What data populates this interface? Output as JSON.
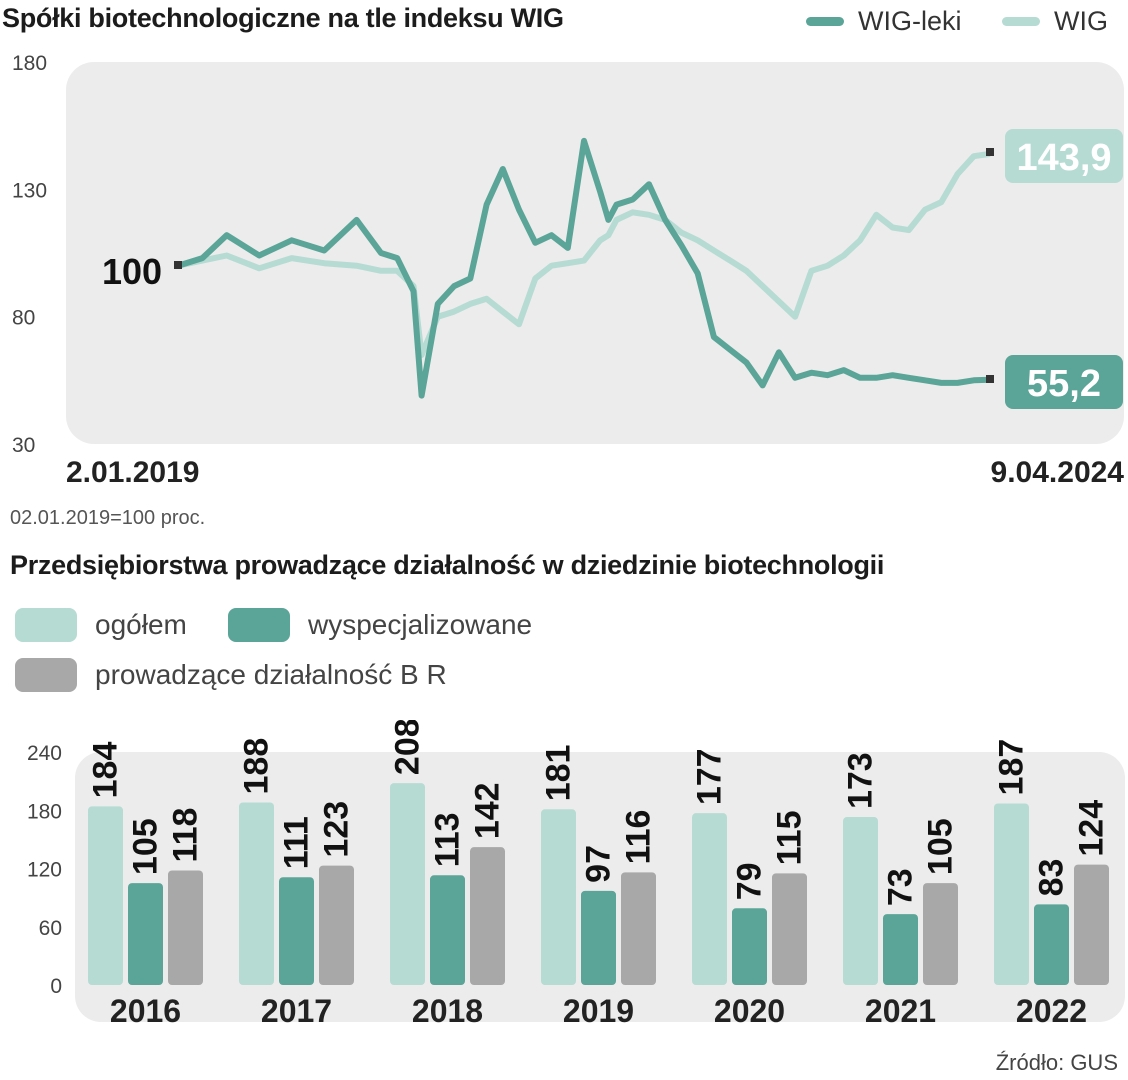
{
  "colors": {
    "wig_leki": "#5aa597",
    "wig": "#b5dbd3",
    "ogolem": "#b5dbd3",
    "wyspecjalizowane": "#5aa597",
    "br": "#a8a8a8",
    "panel": "#ececec"
  },
  "top": {
    "title": "Spółki biotechnologiczne na tle indeksu WIG",
    "legend": [
      {
        "label": "WIG-leki",
        "color": "#5aa597"
      },
      {
        "label": "WIG",
        "color": "#b5dbd3"
      }
    ],
    "start_label": "100",
    "date_start": "2.01.2019",
    "date_end": "9.04.2024",
    "note": "02.01.2019=100 proc.",
    "end_wig_label": "143,9",
    "end_leki_label": "55,2"
  },
  "bottom": {
    "title": "Przedsiębiorstwa prowadzące działalność w dziedzinie biotechnologii",
    "legend": [
      {
        "label": "ogółem",
        "color": "#b5dbd3"
      },
      {
        "label": "wyspecjalizowane",
        "color": "#5aa597"
      },
      {
        "label": "prowadzące działalność B R",
        "color": "#a8a8a8"
      }
    ],
    "source": "Źródło: GUS"
  },
  "chart_data": [
    {
      "type": "line",
      "title": "Spółki biotechnologiczne na tle indeksu WIG",
      "ylim": [
        30,
        180
      ],
      "yticks": [
        180,
        130,
        80,
        30
      ],
      "x_start": "2.01.2019",
      "x_end": "9.04.2024",
      "x_positions": [
        0,
        0.03,
        0.06,
        0.1,
        0.14,
        0.18,
        0.22,
        0.25,
        0.27,
        0.29,
        0.3,
        0.32,
        0.34,
        0.36,
        0.38,
        0.4,
        0.42,
        0.44,
        0.46,
        0.48,
        0.5,
        0.52,
        0.53,
        0.54,
        0.56,
        0.58,
        0.6,
        0.62,
        0.64,
        0.66,
        0.68,
        0.7,
        0.72,
        0.74,
        0.76,
        0.78,
        0.8,
        0.82,
        0.84,
        0.86,
        0.88,
        0.9,
        0.92,
        0.94,
        0.96,
        0.98,
        1.0
      ],
      "series": [
        {
          "name": "WIG-leki",
          "values": [
            100,
            103,
            112,
            104,
            110,
            106,
            118,
            105,
            103,
            90,
            49,
            85,
            92,
            95,
            124,
            138,
            122,
            109,
            112,
            107,
            149,
            129,
            118,
            124,
            126,
            132,
            118,
            108,
            97,
            72,
            67,
            62,
            53,
            66,
            56,
            58,
            57,
            59,
            56,
            56,
            57,
            56,
            55,
            54,
            54,
            55,
            55.2
          ]
        },
        {
          "name": "WIG",
          "values": [
            100,
            102,
            104,
            99,
            103,
            101,
            100,
            98,
            98,
            92,
            65,
            80,
            82,
            85,
            87,
            82,
            77,
            95,
            100,
            101,
            102,
            110,
            112,
            118,
            121,
            120,
            118,
            113,
            110,
            106,
            102,
            98,
            92,
            86,
            80,
            98,
            100,
            104,
            110,
            120,
            115,
            114,
            122,
            125,
            136,
            143,
            143.9
          ]
        }
      ]
    },
    {
      "type": "bar",
      "title": "Przedsiębiorstwa prowadzące działalność w dziedzinie biotechnologii",
      "categories": [
        "2016",
        "2017",
        "2018",
        "2019",
        "2020",
        "2021",
        "2022"
      ],
      "ylim": [
        0,
        240
      ],
      "yticks": [
        240,
        180,
        120,
        60,
        0
      ],
      "series": [
        {
          "name": "ogółem",
          "values": [
            184,
            188,
            208,
            181,
            177,
            173,
            187
          ]
        },
        {
          "name": "wyspecjalizowane",
          "values": [
            105,
            111,
            113,
            97,
            79,
            73,
            83
          ]
        },
        {
          "name": "prowadzące działalność B R",
          "values": [
            118,
            123,
            142,
            116,
            115,
            105,
            124
          ]
        }
      ],
      "source": "Źródło: GUS"
    }
  ]
}
